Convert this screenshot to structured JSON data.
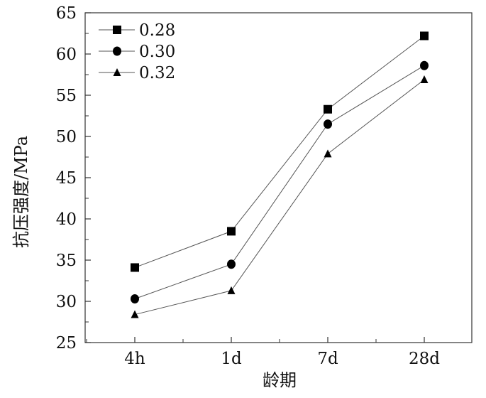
{
  "chart_data": {
    "type": "line",
    "title": "",
    "xlabel": "龄期",
    "ylabel": "抗压强度/MPa",
    "categories": [
      "4h",
      "1d",
      "7d",
      "28d"
    ],
    "ylim": [
      25,
      65
    ],
    "yticks": [
      25,
      30,
      35,
      40,
      45,
      50,
      55,
      60,
      65
    ],
    "legend_position": "top-left",
    "grid": false,
    "series": [
      {
        "name": "0.28",
        "marker": "square",
        "values": [
          34.1,
          38.5,
          53.3,
          62.2
        ]
      },
      {
        "name": "0.30",
        "marker": "circle",
        "values": [
          30.3,
          34.5,
          51.5,
          58.6
        ]
      },
      {
        "name": "0.32",
        "marker": "triangle",
        "values": [
          28.4,
          31.3,
          47.9,
          56.9
        ]
      }
    ]
  }
}
